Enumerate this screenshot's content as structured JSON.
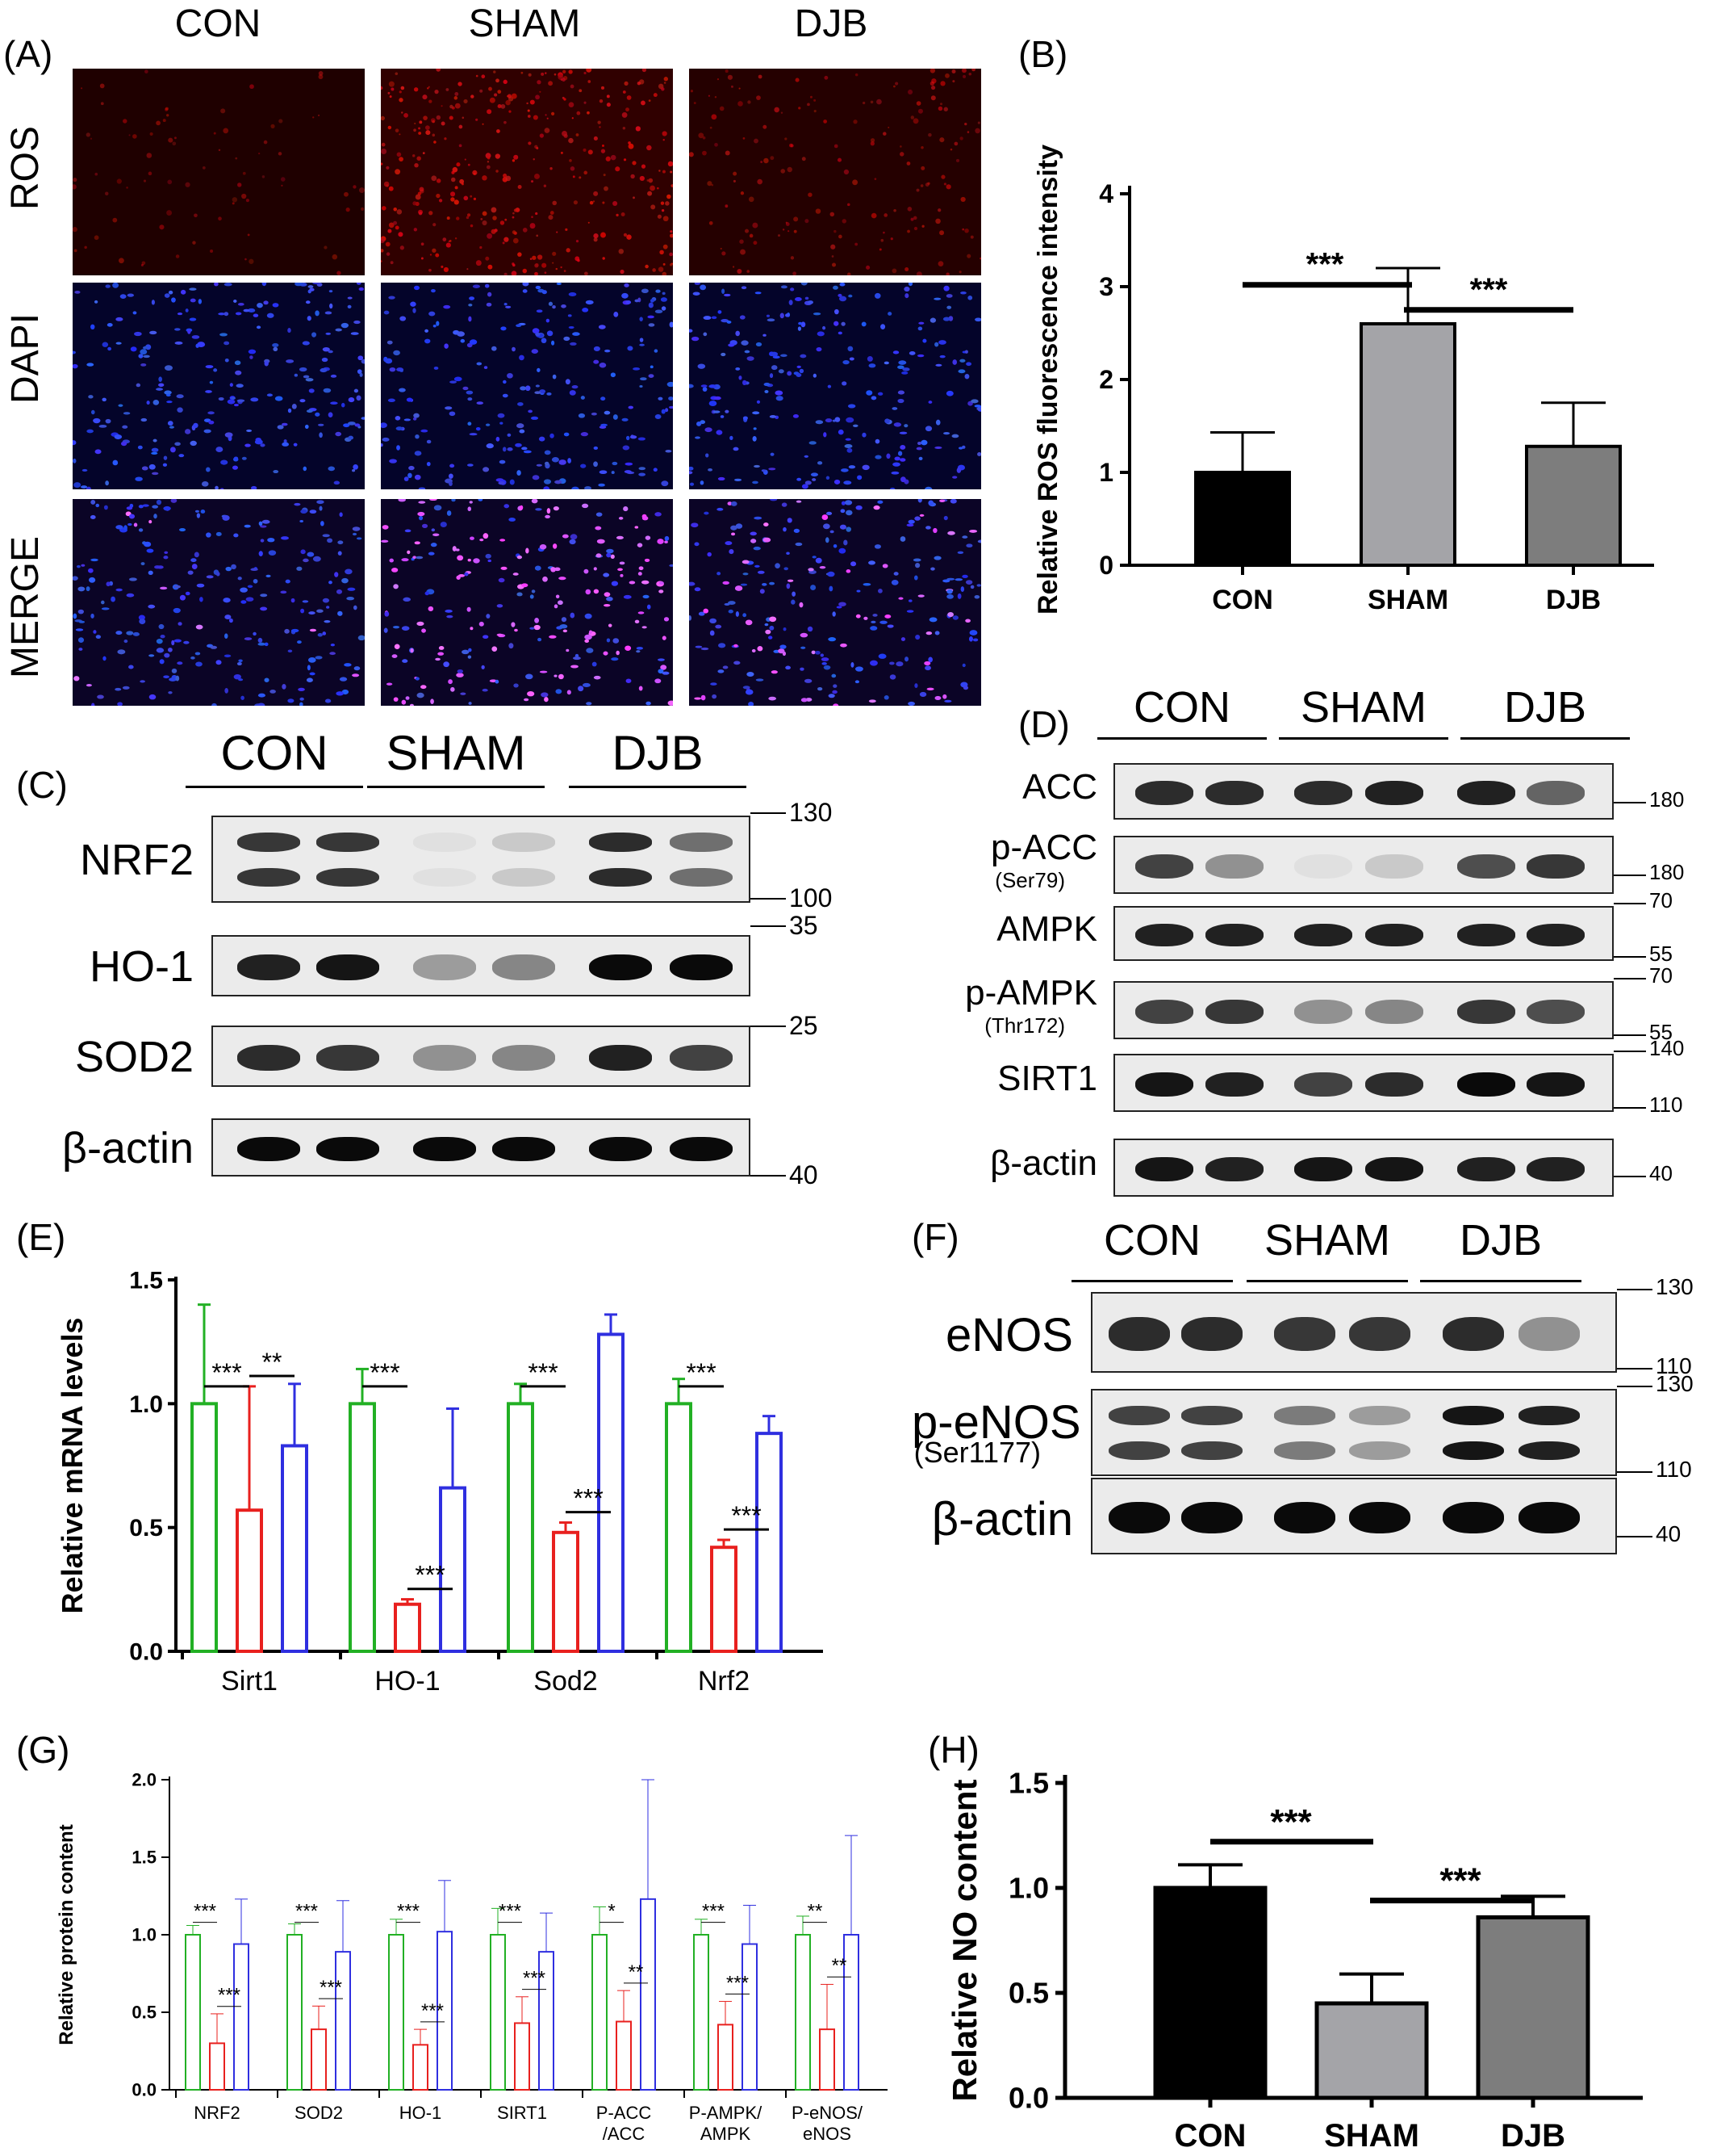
{
  "panelA": {
    "label": "(A)",
    "columns": [
      "CON",
      "SHAM",
      "DJB"
    ],
    "rows": [
      "ROS",
      "DAPI",
      "MERGE"
    ],
    "ros_density": [
      0.04,
      0.6,
      0.22
    ]
  },
  "panelB": {
    "label": "(B)",
    "chart_data": {
      "type": "bar",
      "categories": [
        "CON",
        "SHAM",
        "DJB"
      ],
      "values": [
        1.0,
        2.6,
        1.28
      ],
      "errors": [
        0.43,
        0.6,
        0.47
      ],
      "ylabel": "Relative ROS fluorescence intensity",
      "ylim": [
        0,
        4
      ],
      "yticks": [
        "0",
        "1",
        "2",
        "3",
        "4"
      ],
      "colors": [
        "#000000",
        "#a4a4a8",
        "#7d7d7d"
      ],
      "significance": [
        {
          "from": "CON",
          "to": "SHAM",
          "label": "***"
        },
        {
          "from": "SHAM",
          "to": "DJB",
          "label": "***"
        }
      ]
    }
  },
  "panelC": {
    "label": "(C)",
    "groups": [
      "CON",
      "SHAM",
      "DJB"
    ],
    "rows": [
      {
        "label": "NRF2",
        "markers": [
          "130",
          "100"
        ],
        "intensity": [
          0.8,
          0.8,
          0.05,
          0.15,
          0.85,
          0.55
        ]
      },
      {
        "label": "HO-1",
        "markers": [
          "35"
        ],
        "intensity": [
          0.9,
          0.95,
          0.35,
          0.45,
          1.0,
          1.0
        ]
      },
      {
        "label": "SOD2",
        "markers": [
          "25"
        ],
        "intensity": [
          0.85,
          0.8,
          0.4,
          0.45,
          0.9,
          0.75
        ]
      },
      {
        "label": "β-actin",
        "markers": [
          "40"
        ],
        "intensity": [
          1.0,
          1.0,
          1.0,
          1.0,
          1.0,
          1.0
        ]
      }
    ]
  },
  "panelD": {
    "label": "(D)",
    "groups": [
      "CON",
      "SHAM",
      "DJB"
    ],
    "rows": [
      {
        "label": "ACC",
        "sub": "",
        "markers": [
          "180"
        ],
        "intensity": [
          0.85,
          0.85,
          0.85,
          0.9,
          0.9,
          0.6
        ]
      },
      {
        "label": "p-ACC",
        "sub": "(Ser79)",
        "markers": [
          "180"
        ],
        "intensity": [
          0.75,
          0.4,
          0.05,
          0.15,
          0.7,
          0.8
        ]
      },
      {
        "label": "AMPK",
        "sub": "",
        "markers": [
          "70",
          "55"
        ],
        "intensity": [
          0.9,
          0.9,
          0.9,
          0.9,
          0.9,
          0.9
        ]
      },
      {
        "label": "p-AMPK",
        "sub": "(Thr172)",
        "markers": [
          "70",
          "55"
        ],
        "intensity": [
          0.75,
          0.8,
          0.4,
          0.45,
          0.8,
          0.7
        ]
      },
      {
        "label": "SIRT1",
        "sub": "",
        "markers": [
          "140",
          "110"
        ],
        "intensity": [
          0.95,
          0.9,
          0.75,
          0.85,
          1.0,
          0.95
        ]
      },
      {
        "label": "β-actin",
        "sub": "",
        "markers": [
          "40"
        ],
        "intensity": [
          0.95,
          0.9,
          0.95,
          0.95,
          0.9,
          0.9
        ]
      }
    ]
  },
  "panelE": {
    "label": "(E)",
    "chart_data": {
      "type": "bar",
      "categories": [
        "Sirt1",
        "HO-1",
        "Sod2",
        "Nrf2"
      ],
      "series": [
        {
          "values": [
            1.0,
            1.0,
            1.0,
            1.0
          ],
          "errors": [
            0.4,
            0.14,
            0.08,
            0.1
          ],
          "color": "#22b024"
        },
        {
          "values": [
            0.57,
            0.19,
            0.48,
            0.42
          ],
          "errors": [
            0.5,
            0.02,
            0.04,
            0.03
          ],
          "color": "#e8201e"
        },
        {
          "values": [
            0.83,
            0.66,
            1.28,
            0.88
          ],
          "errors": [
            0.25,
            0.32,
            0.08,
            0.07
          ],
          "color": "#2f2fe0"
        }
      ],
      "ylabel": "Relative mRNA levels",
      "ylim": [
        0,
        1.5
      ],
      "yticks": [
        "0.0",
        "0.5",
        "1.0",
        "1.5"
      ],
      "significance": [
        {
          "category": "Sirt1",
          "pair": [
            0,
            1
          ],
          "label": "***"
        },
        {
          "category": "Sirt1",
          "pair": [
            1,
            2
          ],
          "label": "**"
        },
        {
          "category": "HO-1",
          "pair": [
            0,
            1
          ],
          "label": "***"
        },
        {
          "category": "HO-1",
          "pair": [
            1,
            2
          ],
          "label": "***"
        },
        {
          "category": "Sod2",
          "pair": [
            0,
            1
          ],
          "label": "***"
        },
        {
          "category": "Sod2",
          "pair": [
            1,
            2
          ],
          "label": "***"
        },
        {
          "category": "Nrf2",
          "pair": [
            0,
            1
          ],
          "label": "***"
        },
        {
          "category": "Nrf2",
          "pair": [
            1,
            2
          ],
          "label": "***"
        }
      ]
    }
  },
  "panelF": {
    "label": "(F)",
    "groups": [
      "CON",
      "SHAM",
      "DJB"
    ],
    "rows": [
      {
        "label": "eNOS",
        "sub": "",
        "markers": [
          "130",
          "110"
        ],
        "intensity": [
          0.85,
          0.85,
          0.8,
          0.8,
          0.85,
          0.4
        ]
      },
      {
        "label": "p-eNOS",
        "sub": "(Ser1177)",
        "markers": [
          "130",
          "110"
        ],
        "intensity": [
          0.75,
          0.75,
          0.5,
          0.35,
          0.95,
          0.9
        ]
      },
      {
        "label": "β-actin",
        "sub": "",
        "markers": [
          "40"
        ],
        "intensity": [
          1.0,
          1.0,
          1.0,
          1.0,
          1.0,
          1.0
        ]
      }
    ]
  },
  "panelG": {
    "label": "(G)",
    "chart_data": {
      "type": "bar",
      "categories": [
        "NRF2",
        "SOD2",
        "HO-1",
        "SIRT1",
        "P-ACC\n/ACC",
        "P-AMPK/\nAMPK",
        "P-eNOS/\neNOS"
      ],
      "series": [
        {
          "values": [
            1.0,
            1.0,
            1.0,
            1.0,
            1.0,
            1.0,
            1.0
          ],
          "errors": [
            0.06,
            0.07,
            0.1,
            0.17,
            0.18,
            0.1,
            0.12
          ],
          "color": "#22b024"
        },
        {
          "values": [
            0.3,
            0.39,
            0.29,
            0.43,
            0.44,
            0.42,
            0.39
          ],
          "errors": [
            0.19,
            0.15,
            0.1,
            0.17,
            0.2,
            0.15,
            0.29
          ],
          "color": "#e8201e"
        },
        {
          "values": [
            0.94,
            0.89,
            1.02,
            0.89,
            1.23,
            0.94,
            1.0
          ],
          "errors": [
            0.29,
            0.33,
            0.33,
            0.25,
            0.77,
            0.25,
            0.64
          ],
          "color": "#2f2fe0"
        }
      ],
      "ylabel": "Relative protein content",
      "ylim": [
        0,
        2.0
      ],
      "yticks": [
        "0.0",
        "0.5",
        "1.0",
        "1.5",
        "2.0"
      ],
      "significance": [
        {
          "category": "NRF2",
          "pair": [
            0,
            1
          ],
          "label": "***"
        },
        {
          "category": "NRF2",
          "pair": [
            1,
            2
          ],
          "label": "***"
        },
        {
          "category": "SOD2",
          "pair": [
            0,
            1
          ],
          "label": "***"
        },
        {
          "category": "SOD2",
          "pair": [
            1,
            2
          ],
          "label": "***"
        },
        {
          "category": "HO-1",
          "pair": [
            0,
            1
          ],
          "label": "***"
        },
        {
          "category": "HO-1",
          "pair": [
            1,
            2
          ],
          "label": "***"
        },
        {
          "category": "SIRT1",
          "pair": [
            0,
            1
          ],
          "label": "***"
        },
        {
          "category": "SIRT1",
          "pair": [
            1,
            2
          ],
          "label": "***"
        },
        {
          "category": "P-ACC /ACC",
          "pair": [
            0,
            1
          ],
          "label": "*"
        },
        {
          "category": "P-ACC /ACC",
          "pair": [
            1,
            2
          ],
          "label": "**"
        },
        {
          "category": "P-AMPK/ AMPK",
          "pair": [
            0,
            1
          ],
          "label": "***"
        },
        {
          "category": "P-AMPK/ AMPK",
          "pair": [
            1,
            2
          ],
          "label": "***"
        },
        {
          "category": "P-eNOS/ eNOS",
          "pair": [
            0,
            1
          ],
          "label": "**"
        },
        {
          "category": "P-eNOS/ eNOS",
          "pair": [
            1,
            2
          ],
          "label": "**"
        }
      ]
    }
  },
  "panelH": {
    "label": "(H)",
    "chart_data": {
      "type": "bar",
      "categories": [
        "CON",
        "SHAM",
        "DJB"
      ],
      "values": [
        1.0,
        0.45,
        0.86
      ],
      "errors": [
        0.11,
        0.14,
        0.1
      ],
      "ylabel": "Relative NO content",
      "ylim": [
        0,
        1.5
      ],
      "yticks": [
        "0.0",
        "0.5",
        "1.0",
        "1.5"
      ],
      "colors": [
        "#000000",
        "#a4a4a8",
        "#7d7d7d"
      ],
      "significance": [
        {
          "from": "CON",
          "to": "SHAM",
          "label": "***"
        },
        {
          "from": "SHAM",
          "to": "DJB",
          "label": "***"
        }
      ]
    }
  }
}
